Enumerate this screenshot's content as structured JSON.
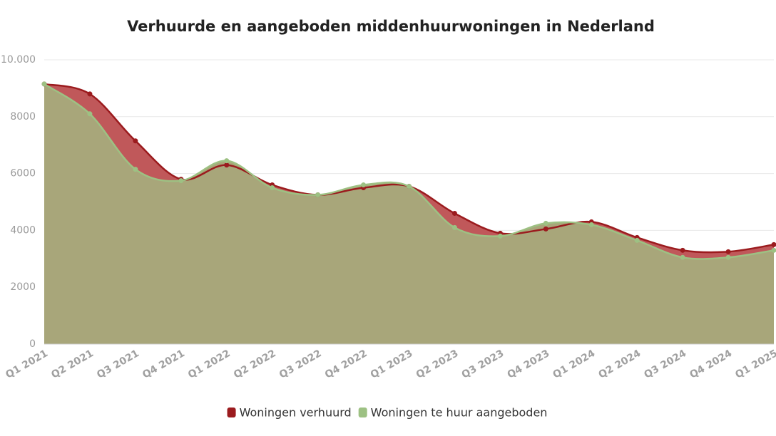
{
  "chart_data": {
    "type": "area",
    "title": "Verhuurde en aangeboden middenhuurwoningen in Nederland",
    "categories": [
      "Q1 2021",
      "Q2 2021",
      "Q3 2021",
      "Q4 2021",
      "Q1 2022",
      "Q2 2022",
      "Q3 2022",
      "Q4 2022",
      "Q1 2023",
      "Q2 2023",
      "Q3 2023",
      "Q4 2023",
      "Q1 2024",
      "Q2 2024",
      "Q3 2024",
      "Q4 2024",
      "Q1 2025"
    ],
    "series": [
      {
        "name": "Woningen verhuurd",
        "color": "#9b1b1e",
        "fill": "#c0585a",
        "values": [
          9150,
          8800,
          7150,
          5800,
          6300,
          5600,
          5250,
          5500,
          5550,
          4600,
          3900,
          4050,
          4300,
          3750,
          3300,
          3250,
          3500
        ]
      },
      {
        "name": "Woningen te huur aangeboden",
        "color": "#9dc183",
        "fill": "#a8a67a",
        "values": [
          9150,
          8100,
          6150,
          5750,
          6450,
          5500,
          5250,
          5600,
          5550,
          4100,
          3800,
          4250,
          4200,
          3650,
          3050,
          3050,
          3300
        ]
      }
    ],
    "ylim": [
      0,
      10000
    ],
    "yticks": [
      0,
      2000,
      4000,
      6000,
      8000,
      {
        "value": 10000,
        "label": "10.000"
      }
    ],
    "grid": true,
    "legend": "bottom"
  }
}
